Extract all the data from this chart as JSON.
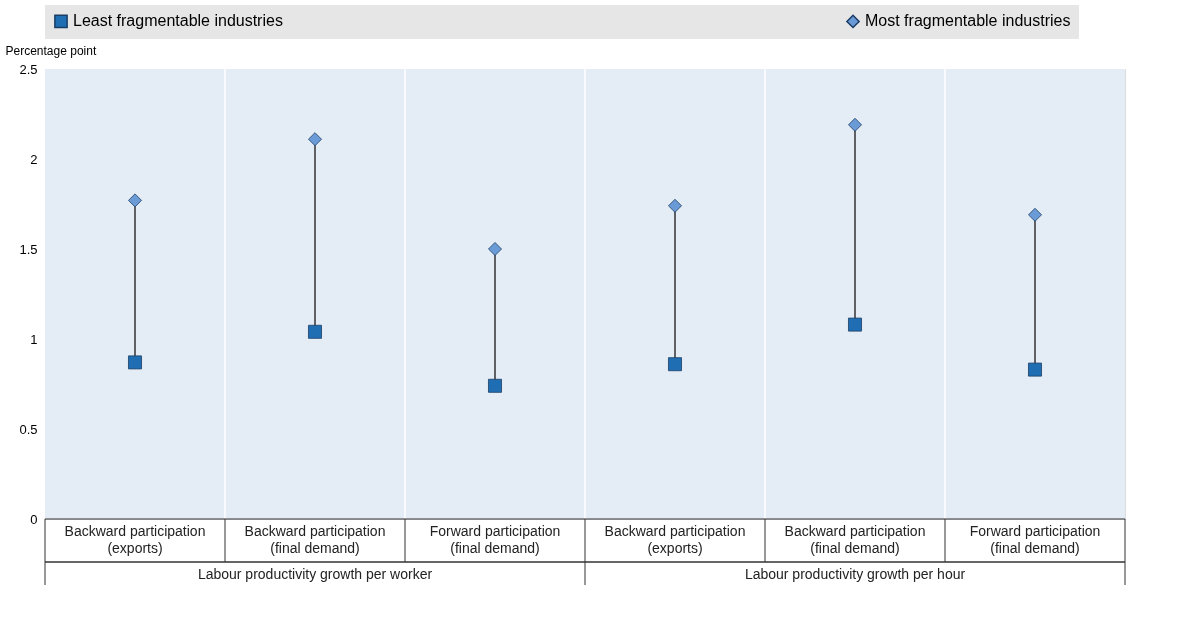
{
  "chart_data": {
    "type": "scatter",
    "ylabel": "Percentage point",
    "categories": [
      "Backward participation (exports)",
      "Backward participation (final demand)",
      "Forward participation (final demand)",
      "Backward participation (exports)",
      "Backward participation (final demand)",
      "Forward participation (final demand)"
    ],
    "series": [
      {
        "name": "Least fragmentable industries",
        "color": "#1f6eb3",
        "marker": "square",
        "values": [
          0.87,
          1.04,
          0.74,
          0.86,
          1.08,
          0.83
        ]
      },
      {
        "name": "Most fragmentable industries",
        "color": "#6b9bd6",
        "marker": "diamond",
        "values": [
          1.77,
          2.11,
          1.5,
          1.74,
          2.19,
          1.69
        ]
      }
    ],
    "ylim": [
      0,
      2.5
    ],
    "yticks": [
      0,
      0.5,
      1,
      1.5,
      2,
      2.5
    ],
    "annotations": [
      "Labour productivity growth per worker",
      "Labour productivity growth per hour"
    ],
    "grid": "x",
    "legend": "top"
  }
}
